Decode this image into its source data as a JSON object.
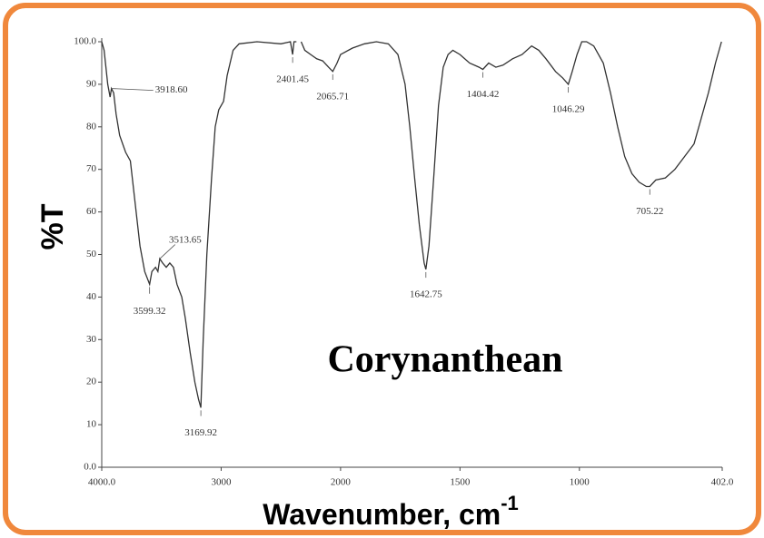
{
  "chart_data": {
    "type": "line",
    "title": "Corynanthean",
    "y_label": "%T",
    "x_label": "Wavenumber, cm",
    "x_label_sup": "-1",
    "xlim": [
      4000,
      402
    ],
    "x_scale_break": 2000,
    "ylim": [
      0,
      100
    ],
    "xticks": [
      {
        "value": 4000,
        "label": "4000.0"
      },
      3000,
      2000,
      1500,
      1000,
      {
        "value": 402,
        "label": "402.0"
      }
    ],
    "yticks": [
      {
        "value": 0,
        "label": "0.0"
      },
      10,
      20,
      30,
      40,
      50,
      60,
      70,
      80,
      90,
      {
        "value": 100,
        "label": "100.0"
      }
    ],
    "grid": false,
    "series": [
      {
        "name": null,
        "color": "#333333",
        "x": [
          4000,
          3980,
          3950,
          3930,
          3918.6,
          3900,
          3880,
          3850,
          3800,
          3760,
          3720,
          3680,
          3640,
          3599.32,
          3580,
          3550,
          3530,
          3513.65,
          3490,
          3460,
          3430,
          3400,
          3370,
          3330,
          3300,
          3260,
          3220,
          3190,
          3169.92,
          3150,
          3120,
          3080,
          3050,
          3020,
          2980,
          2950,
          2900,
          2850,
          2700,
          2500,
          2420,
          2401.45,
          2390,
          2370,
          2360,
          2330,
          2300,
          2250,
          2200,
          2150,
          2100,
          2065.71,
          2030,
          2000,
          1950,
          1900,
          1850,
          1800,
          1760,
          1730,
          1710,
          1690,
          1670,
          1650,
          1642.75,
          1630,
          1610,
          1590,
          1570,
          1550,
          1530,
          1500,
          1460,
          1420,
          1404.42,
          1380,
          1350,
          1320,
          1280,
          1240,
          1200,
          1170,
          1140,
          1100,
          1070,
          1046.29,
          1030,
          1010,
          990,
          970,
          940,
          900,
          870,
          840,
          810,
          780,
          750,
          720,
          705.22,
          680,
          640,
          600,
          560,
          520,
          490,
          460,
          430,
          405
        ],
        "values": [
          100,
          98,
          90,
          87,
          89,
          88,
          83,
          78,
          74,
          72,
          62,
          52,
          46,
          43,
          46,
          47,
          46,
          49,
          48,
          47,
          48,
          47,
          43,
          40,
          35,
          27,
          20,
          16,
          14,
          30,
          50,
          68,
          80,
          84,
          86,
          92,
          98,
          99.5,
          100,
          99.5,
          100,
          97,
          100,
          100,
          null,
          100,
          98,
          97,
          96,
          95.5,
          94,
          93,
          95,
          97,
          98.5,
          99.5,
          100,
          99.5,
          97,
          90,
          80,
          68,
          57,
          48,
          46.5,
          52,
          68,
          85,
          94,
          97,
          98,
          97,
          95,
          94,
          93.5,
          95,
          94,
          94.5,
          96,
          97,
          99,
          98,
          96,
          93,
          91.5,
          90,
          93,
          97,
          100,
          100,
          99,
          95,
          88,
          80,
          73,
          69,
          67,
          66,
          66,
          67.5,
          68,
          70,
          73,
          76,
          82,
          88,
          95,
          100
        ]
      }
    ],
    "annotations": [
      {
        "text": "3918.60",
        "x": 3918.6,
        "y": 89
      },
      {
        "text": "3599.32",
        "x": 3599.32,
        "y": 43
      },
      {
        "text": "3513.65",
        "x": 3513.65,
        "y": 49
      },
      {
        "text": "3169.92",
        "x": 3169.92,
        "y": 14
      },
      {
        "text": "2401.45",
        "x": 2401.45,
        "y": 97
      },
      {
        "text": "2065.71",
        "x": 2065.71,
        "y": 93
      },
      {
        "text": "1642.75",
        "x": 1642.75,
        "y": 46.5
      },
      {
        "text": "1404.42",
        "x": 1404.42,
        "y": 93.5
      },
      {
        "text": "1046.29",
        "x": 1046.29,
        "y": 90
      },
      {
        "text": "705.22",
        "x": 705.22,
        "y": 66
      }
    ]
  }
}
